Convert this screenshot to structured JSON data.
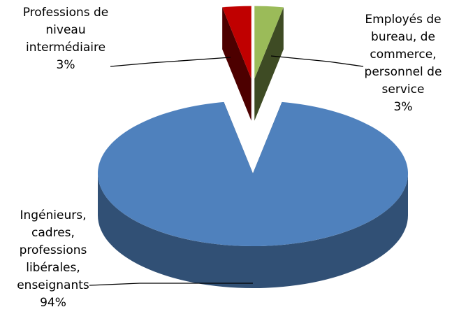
{
  "chart_data": {
    "type": "pie",
    "categories": [
      "Employés de bureau, de commerce, personnel de service",
      "Ingénieurs, cadres, professions libérales, enseignants",
      "Professions de niveau intermédiaire"
    ],
    "values": [
      3,
      94,
      3
    ],
    "value_labels": [
      "3%",
      "94%",
      "3%"
    ],
    "colors": [
      "#9bbb59",
      "#4f81bd",
      "#c00000"
    ]
  }
}
